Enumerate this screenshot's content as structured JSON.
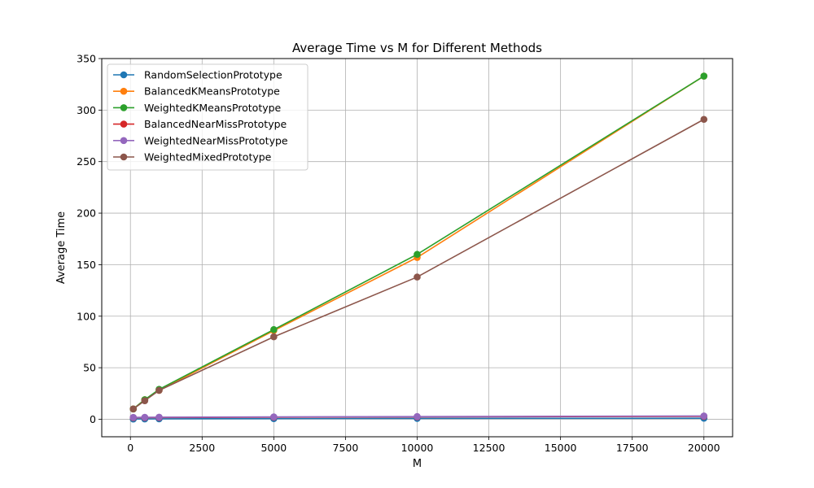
{
  "chart_data": {
    "type": "line",
    "title": "Average Time vs M for Different Methods",
    "xlabel": "M",
    "ylabel": "Average Time",
    "xlim": [
      -1000,
      21000
    ],
    "ylim": [
      -17,
      350
    ],
    "x_ticks": [
      0,
      2500,
      5000,
      7500,
      10000,
      12500,
      15000,
      17500,
      20000
    ],
    "y_ticks": [
      0,
      50,
      100,
      150,
      200,
      250,
      300,
      350
    ],
    "grid": true,
    "legend_position": "top-left",
    "x": [
      100,
      500,
      1000,
      5000,
      10000,
      20000
    ],
    "series": [
      {
        "name": "RandomSelectionPrototype",
        "color": "#1f77b4",
        "values": [
          0.2,
          0.3,
          0.4,
          0.6,
          0.8,
          1.0
        ]
      },
      {
        "name": "BalancedKMeansPrototype",
        "color": "#ff7f0e",
        "values": [
          10,
          19,
          28,
          86,
          157,
          333
        ]
      },
      {
        "name": "WeightedKMeansPrototype",
        "color": "#2ca02c",
        "values": [
          10,
          19,
          29,
          87,
          160,
          333
        ]
      },
      {
        "name": "BalancedNearMissPrototype",
        "color": "#d62728",
        "values": [
          1.5,
          1.6,
          1.7,
          2.0,
          2.3,
          2.8
        ]
      },
      {
        "name": "WeightedNearMissPrototype",
        "color": "#9467bd",
        "values": [
          1.8,
          1.9,
          2.0,
          2.3,
          2.6,
          3.2
        ]
      },
      {
        "name": "WeightedMixedPrototype",
        "color": "#8c564b",
        "values": [
          10,
          18,
          28,
          80,
          138,
          291
        ]
      }
    ]
  }
}
